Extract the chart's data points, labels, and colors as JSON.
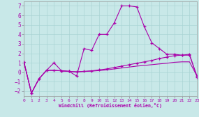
{
  "xlabel": "Windchill (Refroidissement éolien,°C)",
  "bg_color": "#c8e8e8",
  "grid_color": "#aad4d4",
  "line_color": "#aa00aa",
  "xlim": [
    0,
    23
  ],
  "ylim": [
    -2.5,
    7.5
  ],
  "xticks": [
    0,
    1,
    2,
    3,
    4,
    5,
    6,
    7,
    8,
    9,
    10,
    11,
    12,
    13,
    14,
    15,
    16,
    17,
    18,
    19,
    20,
    21,
    22,
    23
  ],
  "yticks": [
    -2,
    -1,
    0,
    1,
    2,
    3,
    4,
    5,
    6,
    7
  ],
  "line1_x": [
    0,
    1,
    2,
    3,
    4,
    5,
    6,
    7,
    8,
    9,
    10,
    11,
    12,
    13,
    14,
    15,
    16,
    17,
    18,
    19,
    20,
    21,
    22,
    23
  ],
  "line1_y": [
    1.1,
    -2.2,
    -0.7,
    0.2,
    1.0,
    0.15,
    0.1,
    -0.4,
    2.5,
    2.3,
    4.0,
    4.0,
    5.2,
    7.0,
    7.0,
    6.9,
    4.8,
    3.1,
    2.5,
    1.9,
    1.9,
    1.8,
    1.9,
    -0.5
  ],
  "line2_x": [
    0,
    1,
    2,
    3,
    4,
    5,
    6,
    7,
    8,
    9,
    10,
    11,
    12,
    13,
    14,
    15,
    16,
    17,
    18,
    19,
    20,
    21,
    22,
    23
  ],
  "line2_y": [
    1.1,
    -2.2,
    -0.7,
    0.2,
    0.2,
    0.15,
    0.1,
    0.05,
    0.1,
    0.15,
    0.25,
    0.35,
    0.5,
    0.65,
    0.8,
    0.95,
    1.1,
    1.25,
    1.45,
    1.6,
    1.75,
    1.8,
    1.8,
    -0.4
  ],
  "line3_x": [
    0,
    1,
    2,
    3,
    4,
    5,
    6,
    7,
    8,
    9,
    10,
    11,
    12,
    13,
    14,
    15,
    16,
    17,
    18,
    19,
    20,
    21,
    22,
    23
  ],
  "line3_y": [
    1.1,
    -2.2,
    -0.7,
    0.2,
    0.2,
    0.15,
    0.08,
    0.04,
    0.08,
    0.12,
    0.18,
    0.25,
    0.35,
    0.45,
    0.55,
    0.65,
    0.72,
    0.8,
    0.88,
    0.95,
    1.05,
    1.1,
    1.1,
    -0.4
  ]
}
